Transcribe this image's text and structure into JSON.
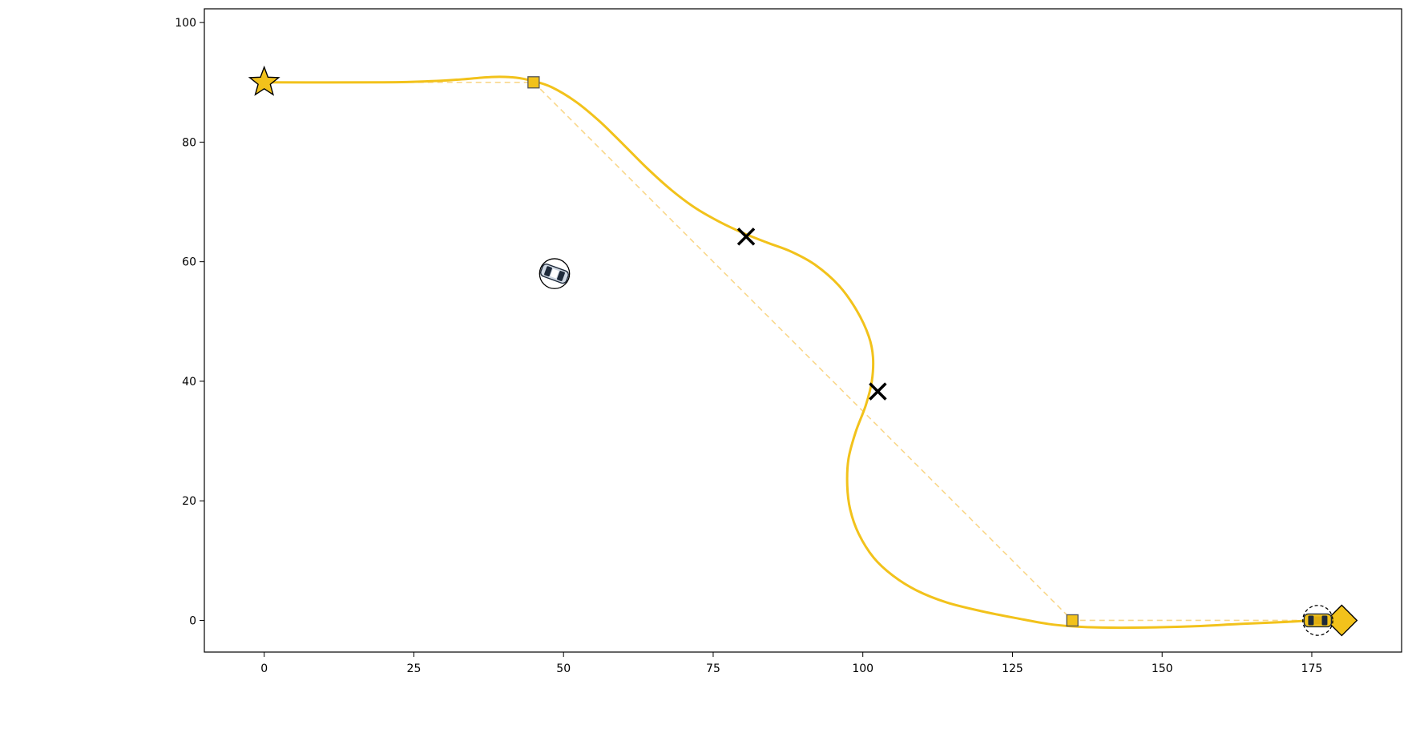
{
  "chart_data": {
    "type": "scatter",
    "title": "",
    "xlabel": "",
    "ylabel": "",
    "xlim": [
      -10,
      190
    ],
    "ylim": [
      -5.3,
      102.3
    ],
    "x_ticks": [
      0,
      25,
      50,
      75,
      100,
      125,
      150,
      175
    ],
    "y_ticks": [
      0,
      20,
      40,
      60,
      80,
      100
    ],
    "grid": false,
    "legend": "none",
    "colors": {
      "path": "#f2c21b",
      "reference": "#f9d78a",
      "marker_edge": "#000000",
      "waypoint_fill": "#f2c21b"
    },
    "series": [
      {
        "role": "planned-trajectory",
        "style": "solid",
        "points": [
          [
            0,
            90
          ],
          [
            20,
            90
          ],
          [
            28,
            90.2
          ],
          [
            33,
            90.5
          ],
          [
            38,
            90.9
          ],
          [
            42,
            90.8
          ],
          [
            45,
            90.2
          ],
          [
            48,
            89.2
          ],
          [
            52,
            86.8
          ],
          [
            56,
            83.5
          ],
          [
            60,
            79.6
          ],
          [
            64,
            75.6
          ],
          [
            68,
            72
          ],
          [
            72,
            69
          ],
          [
            76,
            66.7
          ],
          [
            80,
            64.8
          ],
          [
            84,
            63.2
          ],
          [
            88,
            61.7
          ],
          [
            92,
            59.5
          ],
          [
            96,
            56
          ],
          [
            99,
            51.8
          ],
          [
            101,
            47.5
          ],
          [
            101.7,
            44
          ],
          [
            101.5,
            40
          ],
          [
            100.5,
            36
          ],
          [
            98.8,
            31.5
          ],
          [
            97.6,
            27
          ],
          [
            97.4,
            22.5
          ],
          [
            97.9,
            18.5
          ],
          [
            99.3,
            14.5
          ],
          [
            101.8,
            10.5
          ],
          [
            105,
            7.5
          ],
          [
            109,
            5
          ],
          [
            114,
            3
          ],
          [
            120,
            1.5
          ],
          [
            126,
            0.3
          ],
          [
            131,
            -0.6
          ],
          [
            135,
            -1
          ],
          [
            140,
            -1.2
          ],
          [
            147,
            -1.2
          ],
          [
            155,
            -1
          ],
          [
            163,
            -0.6
          ],
          [
            170,
            -0.3
          ],
          [
            175,
            0
          ]
        ]
      },
      {
        "role": "reference-line",
        "style": "dashed",
        "points": [
          [
            0,
            90
          ],
          [
            45,
            90
          ],
          [
            135,
            0
          ],
          [
            176,
            0
          ]
        ]
      }
    ],
    "markers": [
      {
        "kind": "start",
        "shape": "star",
        "x": 0,
        "y": 90
      },
      {
        "kind": "waypoint",
        "shape": "square",
        "x": 45,
        "y": 90
      },
      {
        "kind": "waypoint",
        "shape": "square",
        "x": 135,
        "y": 0
      },
      {
        "kind": "goal",
        "shape": "diamond",
        "x": 180,
        "y": 0
      },
      {
        "kind": "crossing",
        "shape": "x",
        "x": 80.5,
        "y": 64.2
      },
      {
        "kind": "crossing",
        "shape": "x",
        "x": 102.5,
        "y": 38.3
      },
      {
        "kind": "obstacle-vehicle",
        "shape": "circle-car",
        "x": 48.5,
        "y": 58,
        "radius": 2.5,
        "heading_deg": -20
      },
      {
        "kind": "ego-vehicle",
        "shape": "dashed-circle-car",
        "x": 176,
        "y": 0,
        "radius": 2.5,
        "heading_deg": 0
      }
    ]
  }
}
